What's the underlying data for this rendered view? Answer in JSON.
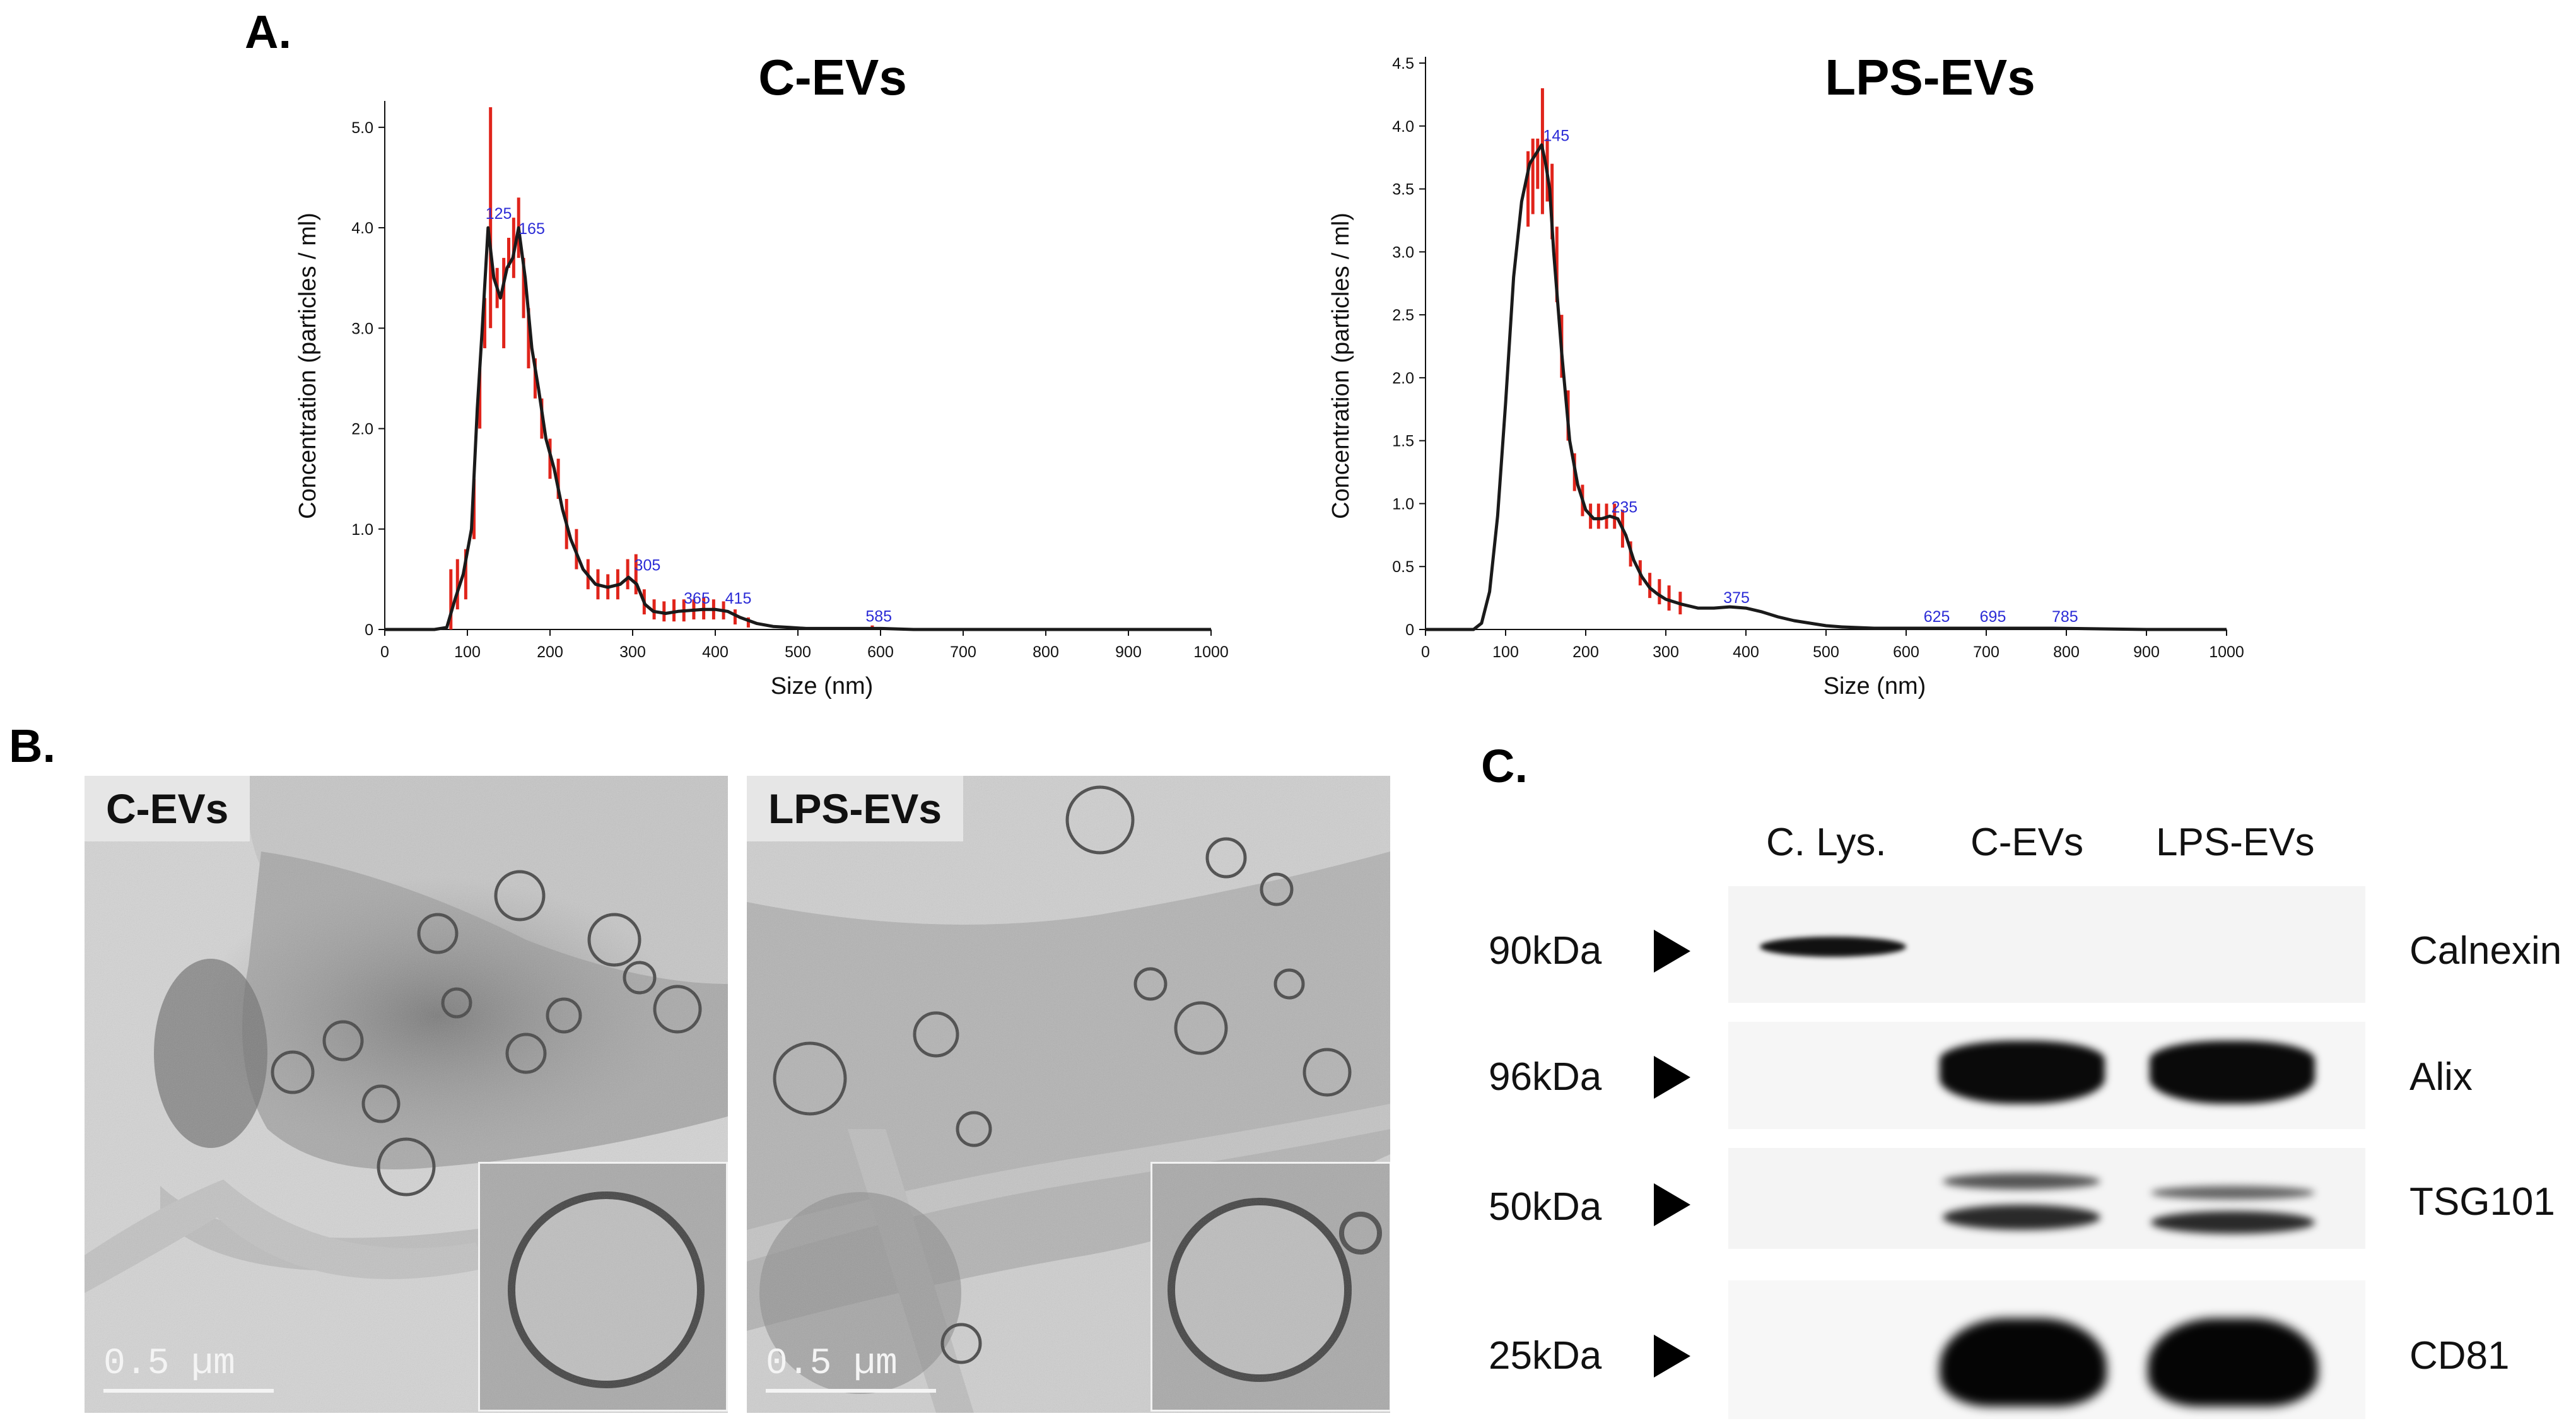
{
  "panels": {
    "a": "A.",
    "b": "B.",
    "c": "C."
  },
  "chart_data": [
    {
      "type": "line",
      "title": "C-EVs",
      "xlabel": "Size (nm)",
      "ylabel": "Concentration (particles / ml)",
      "xlim": [
        0,
        1000
      ],
      "ylim": [
        0,
        5.2
      ],
      "xticks": [
        "0",
        "100",
        "200",
        "300",
        "400",
        "500",
        "600",
        "700",
        "800",
        "900",
        "1000"
      ],
      "yticks": [
        "0",
        "1.0",
        "2.0",
        "3.0",
        "4.0",
        "5.0"
      ],
      "ytick_values": [
        0,
        1,
        2,
        3,
        4,
        5
      ],
      "x": [
        0,
        60,
        75,
        85,
        95,
        105,
        112,
        118,
        125,
        132,
        140,
        148,
        155,
        162,
        170,
        178,
        186,
        195,
        205,
        215,
        225,
        240,
        255,
        270,
        285,
        295,
        305,
        315,
        325,
        340,
        355,
        370,
        385,
        400,
        415,
        430,
        450,
        470,
        490,
        510,
        540,
        570,
        585,
        600,
        640,
        700,
        800,
        900,
        1000
      ],
      "y": [
        0,
        0,
        0.02,
        0.3,
        0.55,
        1.0,
        2.2,
        3.0,
        4.0,
        3.5,
        3.3,
        3.6,
        3.7,
        4.0,
        3.5,
        2.8,
        2.4,
        1.9,
        1.6,
        1.2,
        0.9,
        0.6,
        0.45,
        0.42,
        0.45,
        0.52,
        0.45,
        0.25,
        0.18,
        0.16,
        0.18,
        0.19,
        0.2,
        0.2,
        0.18,
        0.12,
        0.06,
        0.03,
        0.02,
        0.01,
        0.01,
        0.01,
        0.01,
        0.01,
        0.0,
        0.0,
        0.0,
        0.0,
        0.0
      ],
      "error_bars": [
        {
          "x": 80,
          "lo": 0.0,
          "hi": 0.6
        },
        {
          "x": 88,
          "lo": 0.2,
          "hi": 0.7
        },
        {
          "x": 98,
          "lo": 0.3,
          "hi": 0.8
        },
        {
          "x": 108,
          "lo": 0.9,
          "hi": 1.5
        },
        {
          "x": 115,
          "lo": 2.0,
          "hi": 2.6
        },
        {
          "x": 121,
          "lo": 2.8,
          "hi": 3.3
        },
        {
          "x": 128,
          "lo": 3.0,
          "hi": 5.2
        },
        {
          "x": 136,
          "lo": 3.2,
          "hi": 3.6
        },
        {
          "x": 144,
          "lo": 2.8,
          "hi": 3.7
        },
        {
          "x": 150,
          "lo": 3.6,
          "hi": 3.9
        },
        {
          "x": 156,
          "lo": 3.5,
          "hi": 4.1
        },
        {
          "x": 162,
          "lo": 3.7,
          "hi": 4.3
        },
        {
          "x": 168,
          "lo": 3.1,
          "hi": 3.7
        },
        {
          "x": 174,
          "lo": 2.6,
          "hi": 3.2
        },
        {
          "x": 182,
          "lo": 2.3,
          "hi": 2.7
        },
        {
          "x": 190,
          "lo": 1.9,
          "hi": 2.3
        },
        {
          "x": 200,
          "lo": 1.5,
          "hi": 1.9
        },
        {
          "x": 210,
          "lo": 1.3,
          "hi": 1.7
        },
        {
          "x": 220,
          "lo": 0.8,
          "hi": 1.3
        },
        {
          "x": 232,
          "lo": 0.6,
          "hi": 1.0
        },
        {
          "x": 246,
          "lo": 0.4,
          "hi": 0.7
        },
        {
          "x": 258,
          "lo": 0.3,
          "hi": 0.6
        },
        {
          "x": 270,
          "lo": 0.3,
          "hi": 0.55
        },
        {
          "x": 282,
          "lo": 0.3,
          "hi": 0.6
        },
        {
          "x": 294,
          "lo": 0.4,
          "hi": 0.7
        },
        {
          "x": 304,
          "lo": 0.35,
          "hi": 0.75
        },
        {
          "x": 314,
          "lo": 0.15,
          "hi": 0.4
        },
        {
          "x": 326,
          "lo": 0.1,
          "hi": 0.3
        },
        {
          "x": 338,
          "lo": 0.08,
          "hi": 0.28
        },
        {
          "x": 350,
          "lo": 0.08,
          "hi": 0.3
        },
        {
          "x": 362,
          "lo": 0.08,
          "hi": 0.3
        },
        {
          "x": 374,
          "lo": 0.1,
          "hi": 0.3
        },
        {
          "x": 386,
          "lo": 0.1,
          "hi": 0.32
        },
        {
          "x": 398,
          "lo": 0.1,
          "hi": 0.3
        },
        {
          "x": 410,
          "lo": 0.1,
          "hi": 0.28
        },
        {
          "x": 424,
          "lo": 0.05,
          "hi": 0.2
        },
        {
          "x": 440,
          "lo": 0.02,
          "hi": 0.12
        },
        {
          "x": 590,
          "lo": 0.0,
          "hi": 0.04
        }
      ],
      "peak_labels": [
        {
          "text": "125",
          "x": 125,
          "y": 4.05
        },
        {
          "text": "165",
          "x": 165,
          "y": 3.9
        },
        {
          "text": "305",
          "x": 305,
          "y": 0.55
        },
        {
          "text": "365",
          "x": 365,
          "y": 0.22
        },
        {
          "text": "415",
          "x": 415,
          "y": 0.22
        },
        {
          "text": "585",
          "x": 585,
          "y": 0.04
        }
      ]
    },
    {
      "type": "line",
      "title": "LPS-EVs",
      "xlabel": "Size (nm)",
      "ylabel": "Concentration (particles / ml)",
      "xlim": [
        0,
        1000
      ],
      "ylim": [
        0,
        4.5
      ],
      "xticks": [
        "0",
        "100",
        "200",
        "300",
        "400",
        "500",
        "600",
        "700",
        "800",
        "900",
        "1000"
      ],
      "yticks": [
        "0",
        "0.5",
        "1.0",
        "1.5",
        "2.0",
        "2.5",
        "3.0",
        "3.5",
        "4.0",
        "4.5"
      ],
      "ytick_values": [
        0,
        0.5,
        1.0,
        1.5,
        2.0,
        2.5,
        3.0,
        3.5,
        4.0,
        4.5
      ],
      "x": [
        0,
        60,
        70,
        80,
        90,
        100,
        110,
        120,
        130,
        140,
        145,
        150,
        155,
        160,
        170,
        180,
        190,
        200,
        210,
        220,
        230,
        240,
        250,
        260,
        270,
        280,
        290,
        300,
        320,
        340,
        360,
        380,
        400,
        420,
        440,
        460,
        480,
        500,
        520,
        560,
        600,
        625,
        700,
        785,
        900,
        1000
      ],
      "y": [
        0,
        0,
        0.05,
        0.3,
        0.9,
        1.8,
        2.8,
        3.4,
        3.7,
        3.8,
        3.85,
        3.7,
        3.5,
        3.0,
        2.2,
        1.5,
        1.15,
        0.95,
        0.88,
        0.88,
        0.9,
        0.88,
        0.75,
        0.55,
        0.42,
        0.33,
        0.28,
        0.24,
        0.2,
        0.17,
        0.17,
        0.18,
        0.17,
        0.14,
        0.1,
        0.07,
        0.05,
        0.03,
        0.02,
        0.01,
        0.01,
        0.01,
        0.01,
        0.01,
        0.0,
        0.0
      ],
      "error_bars": [
        {
          "x": 128,
          "lo": 3.2,
          "hi": 3.8
        },
        {
          "x": 134,
          "lo": 3.3,
          "hi": 3.9
        },
        {
          "x": 140,
          "lo": 3.5,
          "hi": 3.9
        },
        {
          "x": 146,
          "lo": 3.3,
          "hi": 4.3
        },
        {
          "x": 152,
          "lo": 3.4,
          "hi": 3.9
        },
        {
          "x": 158,
          "lo": 3.1,
          "hi": 3.7
        },
        {
          "x": 164,
          "lo": 2.6,
          "hi": 3.2
        },
        {
          "x": 170,
          "lo": 2.0,
          "hi": 2.5
        },
        {
          "x": 178,
          "lo": 1.5,
          "hi": 1.9
        },
        {
          "x": 186,
          "lo": 1.1,
          "hi": 1.4
        },
        {
          "x": 196,
          "lo": 0.9,
          "hi": 1.15
        },
        {
          "x": 206,
          "lo": 0.8,
          "hi": 1.0
        },
        {
          "x": 216,
          "lo": 0.8,
          "hi": 1.0
        },
        {
          "x": 226,
          "lo": 0.8,
          "hi": 1.0
        },
        {
          "x": 236,
          "lo": 0.8,
          "hi": 1.0
        },
        {
          "x": 246,
          "lo": 0.65,
          "hi": 0.95
        },
        {
          "x": 256,
          "lo": 0.5,
          "hi": 0.7
        },
        {
          "x": 268,
          "lo": 0.35,
          "hi": 0.55
        },
        {
          "x": 280,
          "lo": 0.25,
          "hi": 0.45
        },
        {
          "x": 292,
          "lo": 0.2,
          "hi": 0.4
        },
        {
          "x": 304,
          "lo": 0.15,
          "hi": 0.35
        },
        {
          "x": 318,
          "lo": 0.12,
          "hi": 0.3
        }
      ],
      "peak_labels": [
        {
          "text": "145",
          "x": 150,
          "y": 3.85
        },
        {
          "text": "235",
          "x": 235,
          "y": 0.9
        },
        {
          "text": "375",
          "x": 375,
          "y": 0.18
        },
        {
          "text": "625",
          "x": 625,
          "y": 0.03
        },
        {
          "text": "695",
          "x": 695,
          "y": 0.03
        },
        {
          "text": "785",
          "x": 785,
          "y": 0.03
        }
      ]
    }
  ],
  "tem": {
    "left_label": "C-EVs",
    "right_label": "LPS-EVs",
    "scale_bar": "0.5 µm"
  },
  "western": {
    "lanes": [
      "C. Lys.",
      "C-EVs",
      "LPS-EVs"
    ],
    "rows": [
      {
        "kda": "90kDa",
        "protein": "Calnexin"
      },
      {
        "kda": "96kDa",
        "protein": "Alix"
      },
      {
        "kda": "50kDa",
        "protein": "TSG101"
      },
      {
        "kda": "25kDa",
        "protein": "CD81"
      }
    ]
  }
}
